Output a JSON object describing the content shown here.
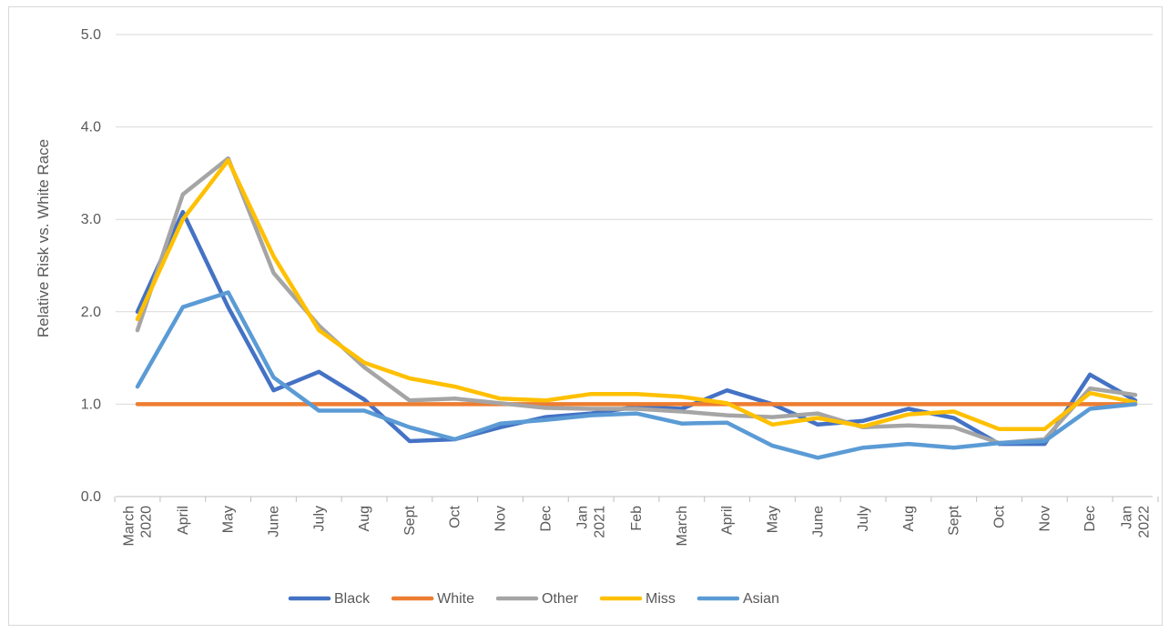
{
  "chart_data": {
    "type": "line",
    "title": "",
    "xlabel": "",
    "ylabel": "Relative Risk vs. White Race",
    "ylim": [
      0.0,
      5.0
    ],
    "yticks": [
      "0.0",
      "1.0",
      "2.0",
      "3.0",
      "4.0",
      "5.0"
    ],
    "grid": true,
    "legend_position": "bottom",
    "categories": [
      "March 2020",
      "April",
      "May",
      "June",
      "July",
      "Aug",
      "Sept",
      "Oct",
      "Nov",
      "Dec",
      "Jan 2021",
      "Feb",
      "March",
      "April",
      "May",
      "June",
      "July",
      "Aug",
      "Sept",
      "Oct",
      "Nov",
      "Dec",
      "Jan 2022"
    ],
    "series": [
      {
        "name": "Black",
        "color": "#4472C4",
        "values": [
          2.0,
          3.08,
          2.05,
          1.15,
          1.35,
          1.05,
          0.6,
          0.62,
          0.75,
          0.86,
          0.9,
          0.97,
          0.95,
          1.15,
          1.0,
          0.78,
          0.82,
          0.95,
          0.85,
          0.57,
          0.57,
          1.32,
          1.04
        ]
      },
      {
        "name": "White",
        "color": "#ED7D31",
        "values": [
          1.0,
          1.0,
          1.0,
          1.0,
          1.0,
          1.0,
          1.0,
          1.0,
          1.0,
          1.0,
          1.0,
          1.0,
          1.0,
          1.0,
          1.0,
          1.0,
          1.0,
          1.0,
          1.0,
          1.0,
          1.0,
          1.0,
          1.0
        ]
      },
      {
        "name": "Other",
        "color": "#A5A5A5",
        "values": [
          1.8,
          3.27,
          3.66,
          2.42,
          1.85,
          1.4,
          1.04,
          1.06,
          1.01,
          0.96,
          0.95,
          0.95,
          0.92,
          0.88,
          0.86,
          0.9,
          0.75,
          0.77,
          0.75,
          0.58,
          0.62,
          1.17,
          1.1
        ]
      },
      {
        "name": "Miss",
        "color": "#FFC000",
        "values": [
          1.92,
          3.0,
          3.64,
          2.6,
          1.8,
          1.45,
          1.28,
          1.19,
          1.06,
          1.04,
          1.11,
          1.11,
          1.08,
          1.01,
          0.78,
          0.85,
          0.76,
          0.89,
          0.92,
          0.73,
          0.73,
          1.12,
          1.02
        ]
      },
      {
        "name": "Asian",
        "color": "#5B9BD5",
        "values": [
          1.19,
          2.05,
          2.21,
          1.29,
          0.93,
          0.93,
          0.75,
          0.62,
          0.79,
          0.83,
          0.88,
          0.9,
          0.79,
          0.8,
          0.55,
          0.42,
          0.53,
          0.57,
          0.53,
          0.58,
          0.6,
          0.95,
          1.0
        ]
      }
    ]
  }
}
